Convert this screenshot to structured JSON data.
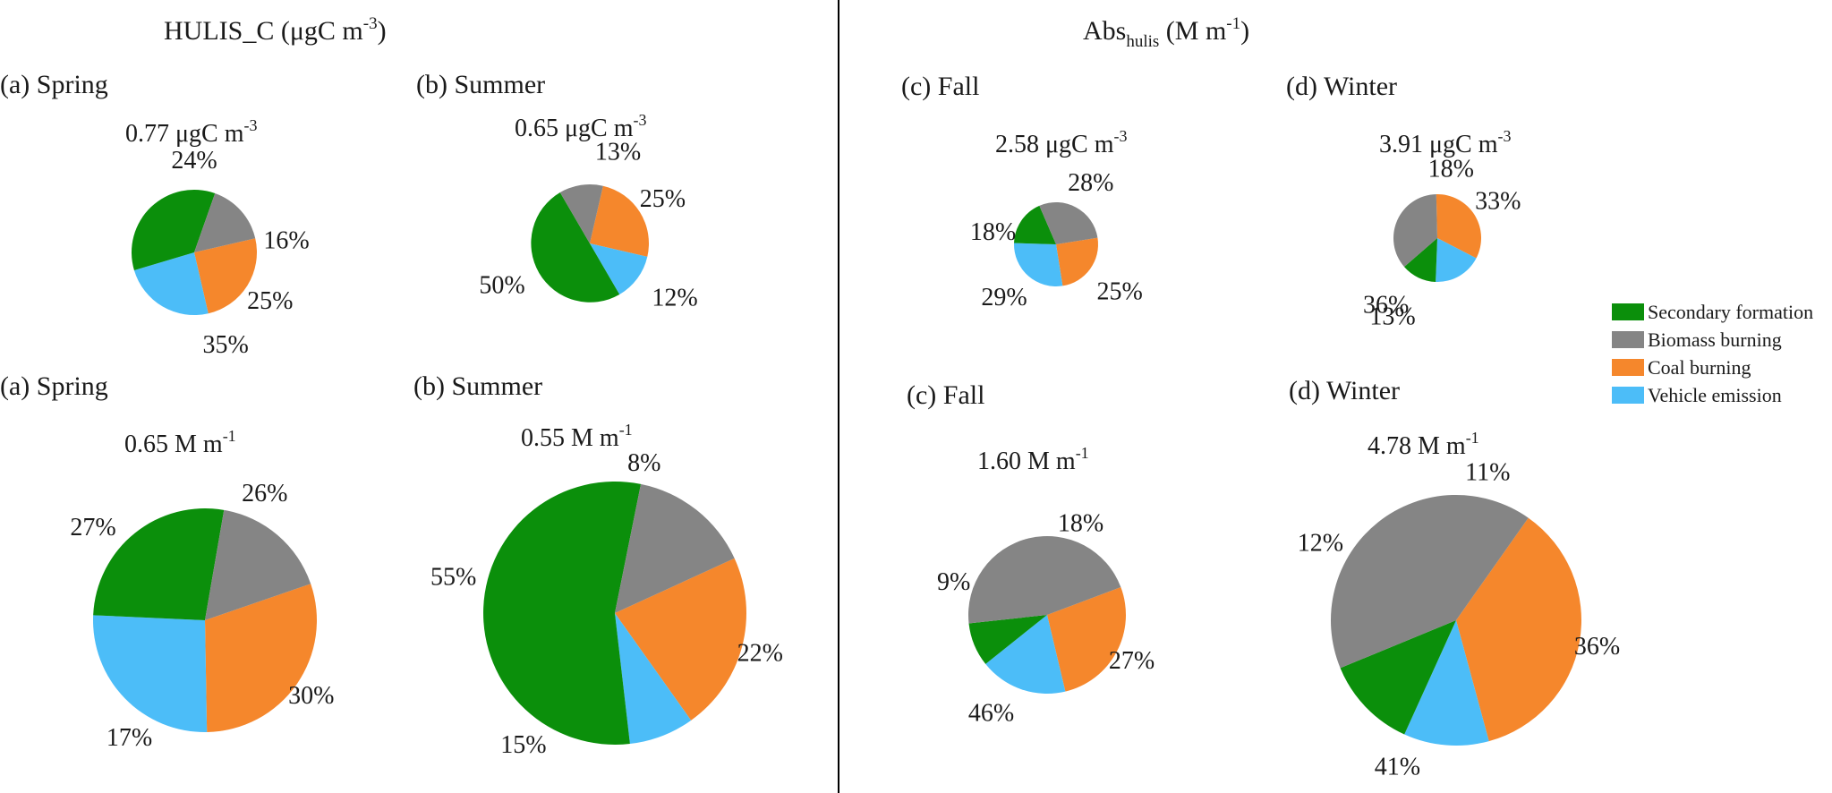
{
  "panels": [
    {
      "heading_main": "HULIS_C (μgC m",
      "heading_sup": "-3",
      "heading_tail": ")",
      "heading_sub": ""
    },
    {
      "heading_main": "Abs",
      "heading_sub": "hulis",
      "heading_sup": "-1",
      "heading_mid": " (M m",
      "heading_tail": ")"
    }
  ],
  "legend": {
    "position": "right",
    "items": [
      {
        "label": "Secondary formation",
        "color": "#0B8F0B"
      },
      {
        "label": "Biomass burning",
        "color": "#858585"
      },
      {
        "label": "Coal burning",
        "color": "#F5872C"
      },
      {
        "label": "Vehicle emission",
        "color": "#4CBDF8"
      }
    ]
  },
  "chart_data": [
    {
      "type": "pie",
      "title": "(a) Spring",
      "total_label": "0.77 μgC m",
      "total_sup": "-3",
      "slices": [
        {
          "label": "Secondary formation",
          "value": 35
        },
        {
          "label": "Biomass burning",
          "value": 16
        },
        {
          "label": "Coal burning",
          "value": 25
        },
        {
          "label": "Vehicle emission",
          "value": 24
        }
      ]
    },
    {
      "type": "pie",
      "title": "(b) Summer",
      "total_label": "0.65 μgC m",
      "total_sup": "-3",
      "slices": [
        {
          "label": "Secondary formation",
          "value": 50
        },
        {
          "label": "Biomass burning",
          "value": 12
        },
        {
          "label": "Coal burning",
          "value": 25
        },
        {
          "label": "Vehicle emission",
          "value": 13
        }
      ]
    },
    {
      "type": "pie",
      "title": "(c) Fall",
      "total_label": "2.58 μgC m",
      "total_sup": "-3",
      "slices": [
        {
          "label": "Secondary formation",
          "value": 18
        },
        {
          "label": "Biomass burning",
          "value": 29
        },
        {
          "label": "Coal burning",
          "value": 25
        },
        {
          "label": "Vehicle emission",
          "value": 28
        }
      ]
    },
    {
      "type": "pie",
      "title": "(d) Winter",
      "total_label": "3.91 μgC m",
      "total_sup": "-3",
      "slices": [
        {
          "label": "Secondary formation",
          "value": 13
        },
        {
          "label": "Biomass burning",
          "value": 36
        },
        {
          "label": "Coal burning",
          "value": 33
        },
        {
          "label": "Vehicle emission",
          "value": 18
        }
      ]
    },
    {
      "type": "pie",
      "title": "(a) Spring",
      "total_label": "0.65 M m",
      "total_sup": "-1",
      "slices": [
        {
          "label": "Secondary formation",
          "value": 27
        },
        {
          "label": "Biomass burning",
          "value": 17
        },
        {
          "label": "Coal burning",
          "value": 30
        },
        {
          "label": "Vehicle emission",
          "value": 26
        }
      ]
    },
    {
      "type": "pie",
      "title": "(b) Summer",
      "total_label": "0.55 M m",
      "total_sup": "-1",
      "slices": [
        {
          "label": "Secondary formation",
          "value": 55
        },
        {
          "label": "Biomass burning",
          "value": 15
        },
        {
          "label": "Coal burning",
          "value": 22
        },
        {
          "label": "Vehicle emission",
          "value": 8
        }
      ]
    },
    {
      "type": "pie",
      "title": "(c) Fall",
      "total_label": "1.60 M m",
      "total_sup": "-1",
      "slices": [
        {
          "label": "Secondary formation",
          "value": 9
        },
        {
          "label": "Biomass burning",
          "value": 46
        },
        {
          "label": "Coal burning",
          "value": 27
        },
        {
          "label": "Vehicle emission",
          "value": 18
        }
      ]
    },
    {
      "type": "pie",
      "title": "(d) Winter",
      "total_label": "4.78 M m",
      "total_sup": "-1",
      "slices": [
        {
          "label": "Secondary formation",
          "value": 12
        },
        {
          "label": "Biomass burning",
          "value": 41
        },
        {
          "label": "Coal burning",
          "value": 36
        },
        {
          "label": "Vehicle emission",
          "value": 11
        }
      ]
    }
  ]
}
